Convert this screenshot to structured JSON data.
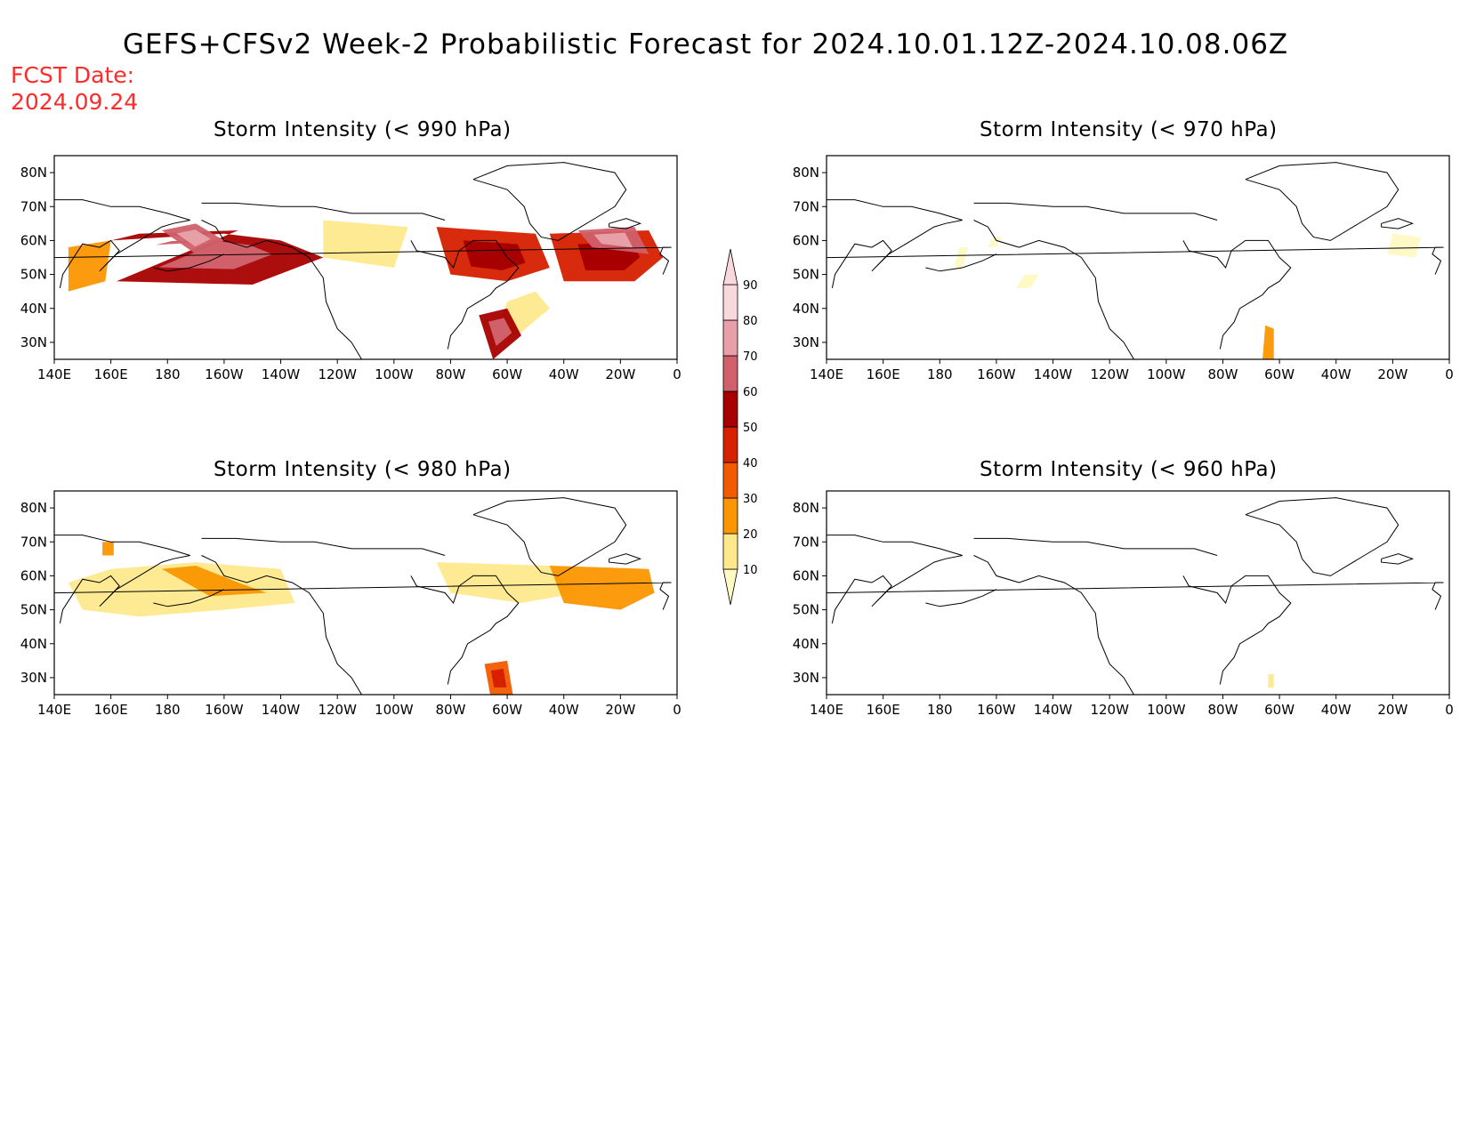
{
  "title": "GEFS+CFSv2 Week-2 Probabilistic Forecast for 2024.10.01.12Z-2024.10.08.06Z",
  "fcst_label": "FCST Date:",
  "fcst_date": "2024.09.24",
  "palette": [
    "#fff9c4",
    "#fde98c",
    "#fb9600",
    "#f25a00",
    "#d62000",
    "#a80000",
    "#d0606a",
    "#e8a0a8",
    "#f8d8dc"
  ],
  "panels": [
    {
      "title": "Storm Intensity (< 990 hPa)",
      "lat_labels": [
        "80N",
        "70N",
        "60N",
        "50N",
        "40N",
        "30N"
      ],
      "lon_labels": [
        "140E",
        "160E",
        "180",
        "160W",
        "140W",
        "120W",
        "100W",
        "80W",
        "60W",
        "40W",
        "20W",
        "0"
      ],
      "regions": [
        {
          "lon": [
            -155,
            170,
            160,
            -160,
            -140,
            -125,
            -150,
            162
          ],
          "lat": [
            63,
            62,
            60,
            62,
            60,
            55,
            47,
            48
          ],
          "level": 5
        },
        {
          "lon": [
            178,
            -170,
            -160,
            -170
          ],
          "lat": [
            63,
            65,
            60,
            56
          ],
          "level": 6
        },
        {
          "lon": [
            145,
            160,
            158,
            145
          ],
          "lat": [
            58,
            60,
            48,
            45
          ],
          "level": 2
        },
        {
          "lon": [
            -125,
            -95,
            -100,
            -125
          ],
          "lat": [
            66,
            64,
            52,
            55
          ],
          "level": 1
        },
        {
          "lon": [
            -85,
            -50,
            -45,
            -60,
            -80
          ],
          "lat": [
            64,
            62,
            52,
            48,
            50
          ],
          "level": 4
        },
        {
          "lon": [
            -45,
            -10,
            -5,
            -15,
            -40
          ],
          "lat": [
            62,
            63,
            55,
            48,
            48
          ],
          "level": 4
        },
        {
          "lon": [
            -35,
            -15,
            -10,
            -30
          ],
          "lat": [
            63,
            64,
            56,
            58
          ],
          "level": 6
        },
        {
          "lon": [
            -60,
            -50,
            -45,
            -55,
            -65
          ],
          "lat": [
            42,
            45,
            40,
            33,
            30
          ],
          "level": 1
        },
        {
          "lon": [
            -70,
            -60,
            -55,
            -65
          ],
          "lat": [
            38,
            40,
            32,
            25
          ],
          "level": 5
        }
      ]
    },
    {
      "title": "Storm Intensity (< 970 hPa)",
      "lat_labels": [
        "80N",
        "70N",
        "60N",
        "50N",
        "40N",
        "30N"
      ],
      "lon_labels": [
        "140E",
        "160E",
        "180",
        "160W",
        "140W",
        "120W",
        "100W",
        "80W",
        "60W",
        "40W",
        "20W",
        "0"
      ],
      "regions": [
        {
          "lon": [
            -173,
            -170,
            -172,
            -175
          ],
          "lat": [
            58,
            58,
            52,
            52
          ],
          "level": 0
        },
        {
          "lon": [
            -161,
            -158,
            -160,
            -163
          ],
          "lat": [
            61,
            61,
            58,
            58
          ],
          "level": 0
        },
        {
          "lon": [
            -150,
            -145,
            -148,
            -153
          ],
          "lat": [
            50,
            50,
            46,
            46
          ],
          "level": 0
        },
        {
          "lon": [
            -20,
            -10,
            -12,
            -22
          ],
          "lat": [
            62,
            61,
            55,
            56
          ],
          "level": 0
        },
        {
          "lon": [
            -65,
            -62,
            -62,
            -66
          ],
          "lat": [
            35,
            34,
            25,
            25
          ],
          "level": 2
        }
      ]
    },
    {
      "title": "Storm Intensity (< 980 hPa)",
      "lat_labels": [
        "80N",
        "70N",
        "60N",
        "50N",
        "40N",
        "30N"
      ],
      "lon_labels": [
        "140E",
        "160E",
        "180",
        "160W",
        "140W",
        "120W",
        "100W",
        "80W",
        "60W",
        "40W",
        "20W",
        "0"
      ],
      "regions": [
        {
          "lon": [
            145,
            160,
            -170,
            -140,
            -135,
            -160,
            170,
            150
          ],
          "lat": [
            58,
            62,
            64,
            62,
            52,
            50,
            48,
            50
          ],
          "level": 1
        },
        {
          "lon": [
            178,
            -170,
            -155,
            -145,
            -165
          ],
          "lat": [
            62,
            63,
            58,
            55,
            54
          ],
          "level": 2
        },
        {
          "lon": [
            157,
            161,
            161,
            157
          ],
          "lat": [
            70,
            70,
            66,
            66
          ],
          "level": 2
        },
        {
          "lon": [
            -85,
            -45,
            -35,
            -55,
            -80
          ],
          "lat": [
            64,
            63,
            55,
            52,
            55
          ],
          "level": 1
        },
        {
          "lon": [
            -45,
            -10,
            -8,
            -20,
            -40
          ],
          "lat": [
            63,
            62,
            55,
            50,
            52
          ],
          "level": 2
        },
        {
          "lon": [
            -68,
            -60,
            -58,
            -66
          ],
          "lat": [
            34,
            35,
            25,
            25
          ],
          "level": 3
        }
      ]
    },
    {
      "title": "Storm Intensity (< 960 hPa)",
      "lat_labels": [
        "80N",
        "70N",
        "60N",
        "50N",
        "40N",
        "30N"
      ],
      "lon_labels": [
        "140E",
        "160E",
        "180",
        "160W",
        "140W",
        "120W",
        "100W",
        "80W",
        "60W",
        "40W",
        "20W",
        "0"
      ],
      "regions": [
        {
          "lon": [
            -64,
            -62,
            -62,
            -64
          ],
          "lat": [
            31,
            31,
            27,
            27
          ],
          "level": 1
        }
      ]
    }
  ],
  "colorbar": {
    "labels": [
      "10",
      "20",
      "30",
      "40",
      "50",
      "60",
      "70",
      "80",
      "90"
    ]
  }
}
